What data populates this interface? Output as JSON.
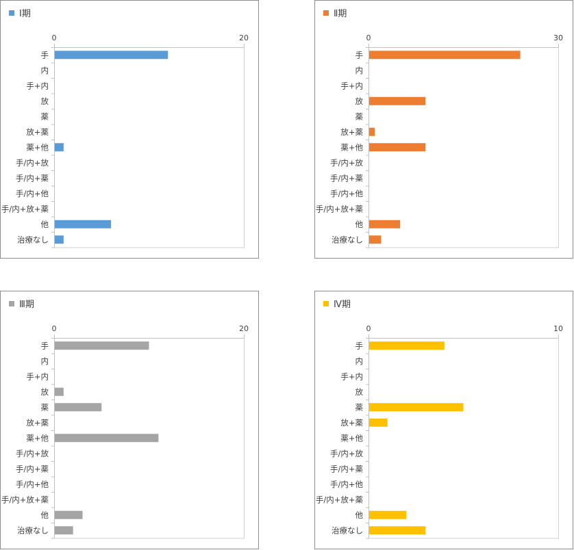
{
  "categories": [
    "手",
    "内",
    "手+内",
    "放",
    "薬",
    "放+薬",
    "薬+他",
    "手/内+放",
    "手/内+薬",
    "手/内+他",
    "手/内+放+薬",
    "他",
    "治療なし"
  ],
  "chart_data": [
    {
      "type": "bar",
      "orientation": "horizontal",
      "title": "",
      "series": [
        {
          "name": "Ⅰ期",
          "color": "#5b9bd5",
          "values": [
            12,
            0,
            0,
            0,
            0,
            0,
            1,
            0,
            0,
            0,
            0,
            6,
            1
          ]
        }
      ],
      "xlim": [
        0,
        20
      ],
      "xticks": [
        "0",
        "20"
      ],
      "legend": "top-left"
    },
    {
      "type": "bar",
      "orientation": "horizontal",
      "title": "",
      "series": [
        {
          "name": "Ⅱ期",
          "color": "#ed7d31",
          "values": [
            24,
            0,
            0,
            9,
            0,
            1,
            9,
            0,
            0,
            0,
            0,
            5,
            2
          ]
        }
      ],
      "xlim": [
        0,
        30
      ],
      "xticks": [
        "0",
        "30"
      ],
      "legend": "top-left"
    },
    {
      "type": "bar",
      "orientation": "horizontal",
      "title": "",
      "series": [
        {
          "name": "Ⅲ期",
          "color": "#a5a5a5",
          "values": [
            10,
            0,
            0,
            1,
            5,
            0,
            11,
            0,
            0,
            0,
            0,
            3,
            2
          ]
        }
      ],
      "xlim": [
        0,
        20
      ],
      "xticks": [
        "0",
        "20"
      ],
      "legend": "top-left"
    },
    {
      "type": "bar",
      "orientation": "horizontal",
      "title": "",
      "series": [
        {
          "name": "Ⅳ期",
          "color": "#ffc000",
          "values": [
            4,
            0,
            0,
            0,
            5,
            1,
            0,
            0,
            0,
            0,
            0,
            2,
            3
          ]
        }
      ],
      "xlim": [
        0,
        10
      ],
      "xticks": [
        "0",
        "10"
      ],
      "legend": "top-left"
    }
  ]
}
